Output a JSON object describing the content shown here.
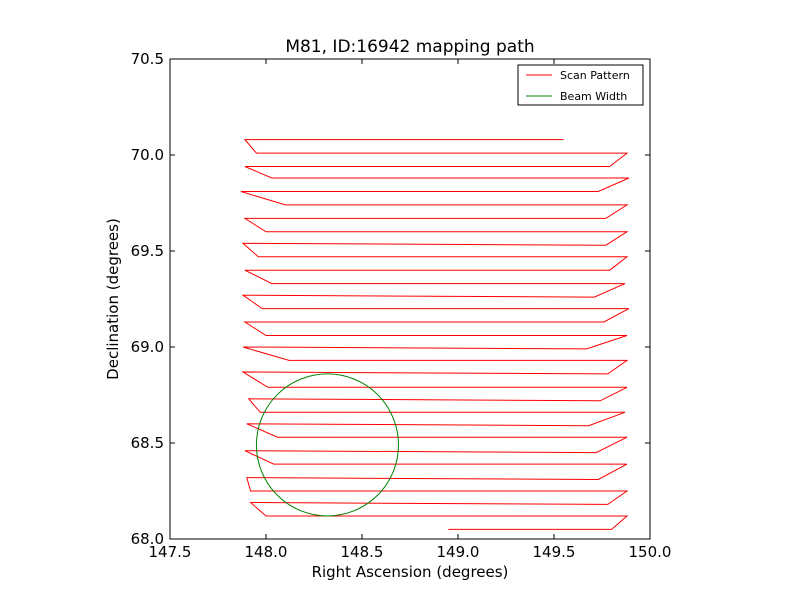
{
  "chart_data": {
    "type": "line",
    "title": "M81, ID:16942 mapping path",
    "xlabel": "Right Ascension (degrees)",
    "ylabel": "Declination (degrees)",
    "xlim": [
      147.5,
      150.0
    ],
    "ylim": [
      68.0,
      70.5
    ],
    "xticks": [
      "147.5",
      "148.0",
      "148.5",
      "149.0",
      "149.5",
      "150.0"
    ],
    "yticks": [
      "68.0",
      "68.5",
      "69.0",
      "69.5",
      "70.0",
      "70.5"
    ],
    "grid": false,
    "legend": {
      "placement": "top-right",
      "entries": [
        "Scan Pattern",
        "Beam Width"
      ]
    },
    "colors": {
      "scan": "#ff0000",
      "beam": "#008000"
    },
    "series": [
      {
        "name": "Scan Pattern",
        "x": [
          148.95,
          149.8,
          149.88,
          148.0,
          147.92,
          149.78,
          149.88,
          147.92,
          147.9,
          149.73,
          149.88,
          148.04,
          147.89,
          149.72,
          149.88,
          148.06,
          147.9,
          149.68,
          149.87,
          147.97,
          147.91,
          149.74,
          149.88,
          148.01,
          147.88,
          149.78,
          149.88,
          148.12,
          147.88,
          149.67,
          149.88,
          148.0,
          147.89,
          149.76,
          149.89,
          147.98,
          147.88,
          149.71,
          149.87,
          148.03,
          147.89,
          149.79,
          149.88,
          147.96,
          147.88,
          149.77,
          149.88,
          148.0,
          147.89,
          149.77,
          149.88,
          148.1,
          147.87,
          149.73,
          149.89,
          148.03,
          147.89,
          149.79,
          149.88,
          147.95,
          147.89,
          149.55
        ],
        "y": [
          68.05,
          68.05,
          68.12,
          68.12,
          68.19,
          68.18,
          68.25,
          68.25,
          68.32,
          68.31,
          68.39,
          68.39,
          68.46,
          68.45,
          68.53,
          68.53,
          68.6,
          68.59,
          68.66,
          68.66,
          68.73,
          68.72,
          68.79,
          68.79,
          68.87,
          68.86,
          68.93,
          68.93,
          69.0,
          68.99,
          69.06,
          69.06,
          69.13,
          69.13,
          69.2,
          69.2,
          69.27,
          69.26,
          69.33,
          69.33,
          69.4,
          69.4,
          69.47,
          69.47,
          69.54,
          69.53,
          69.6,
          69.6,
          69.67,
          69.67,
          69.74,
          69.74,
          69.81,
          69.81,
          69.88,
          69.88,
          69.94,
          69.94,
          70.01,
          70.01,
          70.08,
          70.08
        ]
      },
      {
        "name": "Beam Width",
        "shape": "circle",
        "center": [
          148.32,
          68.49
        ],
        "radius": [
          0.37,
          0.37
        ]
      }
    ]
  }
}
